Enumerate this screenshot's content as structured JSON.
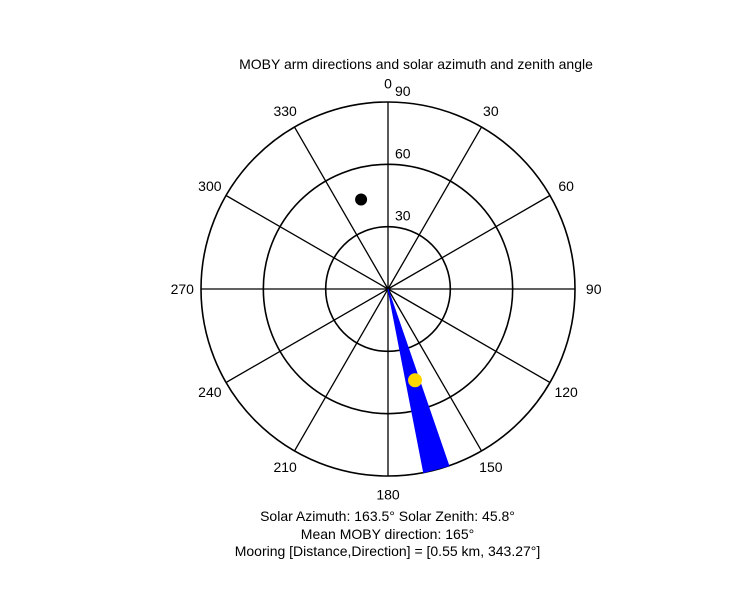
{
  "chart_data": {
    "type": "polar",
    "title": "MOBY arm directions and solar azimuth and zenith angle",
    "angle_convention": "clockwise from north (0 at top)",
    "angle_ticks": [
      0,
      30,
      60,
      90,
      120,
      150,
      180,
      210,
      240,
      270,
      300,
      330
    ],
    "angle_tick_labels": [
      "0",
      "30",
      "60",
      "90",
      "120",
      "150",
      "180",
      "210",
      "240",
      "270",
      "300",
      "330"
    ],
    "radial_range": [
      0,
      90
    ],
    "radial_ticks": [
      30,
      60,
      90
    ],
    "radial_tick_labels": [
      "30",
      "60",
      "90"
    ],
    "grid": true,
    "moby_wedge": {
      "from_deg": 161,
      "to_deg": 169,
      "radius": 90,
      "color": "#0000ff"
    },
    "mean_moby_line": {
      "direction_deg": 165,
      "radius": 90,
      "color": "#0000ff"
    },
    "sun_marker": {
      "azimuth_deg": 163.5,
      "zenith_deg": 45.8,
      "color": "#ffd700"
    },
    "mooring_marker": {
      "direction_deg": 343.27,
      "radius": 45,
      "color": "#000000"
    },
    "captions": [
      "Solar Azimuth: 163.5°    Solar Zenith: 45.8°",
      "Mean MOBY direction: 165°",
      "Mooring [Distance,Direction] = [0.55 km, 343.27°]"
    ]
  }
}
